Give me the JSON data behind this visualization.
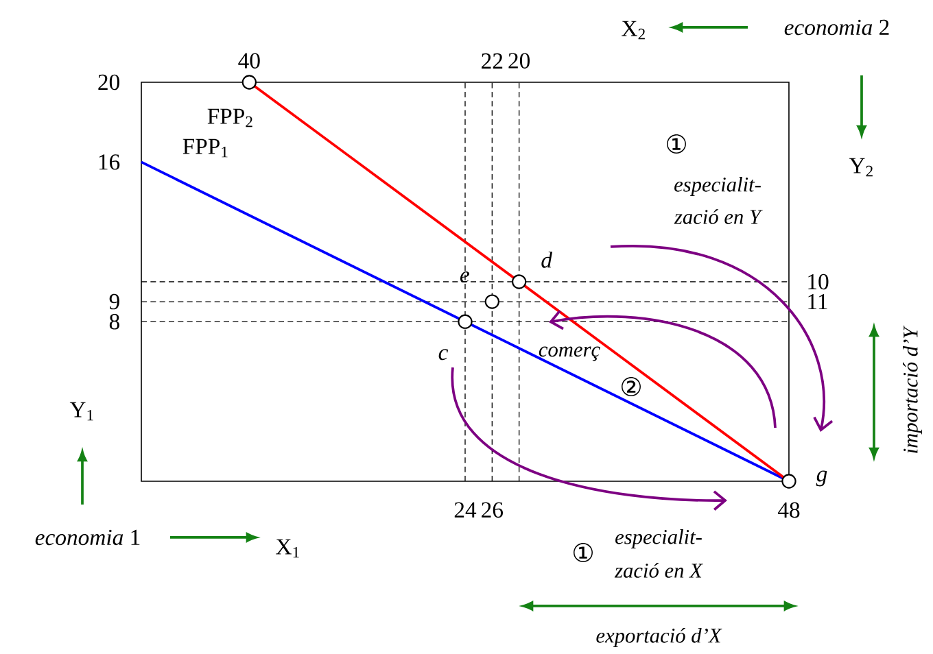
{
  "chart_data": {
    "type": "line",
    "xlabel": "X$_{1}$",
    "ylabel": "Y$_{1}$",
    "x2label": "X$_{2}$",
    "y2label": "Y$_{2}$",
    "xlim": [
      0,
      48
    ],
    "ylim": [
      0,
      20
    ],
    "xticks": [
      24,
      26,
      48
    ],
    "yticks": [
      8,
      9,
      16,
      20
    ],
    "x2lim": [
      48,
      0
    ],
    "x2ticks": [
      40,
      22,
      20
    ],
    "y2lim": [
      20,
      0
    ],
    "y2ticks": [
      10,
      11
    ],
    "series": [
      {
        "name": "FPP$_{1}$",
        "color": "#0000ff",
        "x": [
          0,
          48
        ],
        "values": [
          16,
          0
        ]
      },
      {
        "name": "FPP$_{2}$",
        "color": "#ff0000",
        "x": [
          8,
          48
        ],
        "values": [
          20,
          0
        ]
      },
      {
        "type": "scatter",
        "marker": "circle",
        "color": "#000000",
        "x": [
          8,
          48,
          24,
          26,
          28
        ],
        "values": [
          20,
          0,
          8,
          9,
          10
        ]
      }
    ],
    "ref_lines": [
      {
        "axis": "y",
        "value": 8,
        "line_style": "dashed"
      },
      {
        "axis": "y",
        "value": 9,
        "line_style": "dashed"
      },
      {
        "axis": "y",
        "value": 10,
        "line_style": "dashed"
      },
      {
        "axis": "x",
        "value": 24,
        "line_style": "dashed"
      },
      {
        "axis": "x",
        "value": 26,
        "line_style": "dashed"
      },
      {
        "axis": "x",
        "value": 28,
        "line_style": "dashed"
      }
    ],
    "annotations": [
      "*economia* 2",
      "*economia* 1",
      "①",
      "especialit-",
      "zació en Y",
      "comerç",
      "②",
      "①",
      "especialit-",
      "zació en X",
      "exportació d’X",
      "importació d’Y",
      {
        "text": "c",
        "x": 24,
        "y": 8
      },
      {
        "text": "e",
        "x": 26,
        "y": 9
      },
      {
        "text": "d",
        "x": 28,
        "y": 10
      },
      {
        "text": "g",
        "x": 48,
        "y": 0
      }
    ]
  }
}
